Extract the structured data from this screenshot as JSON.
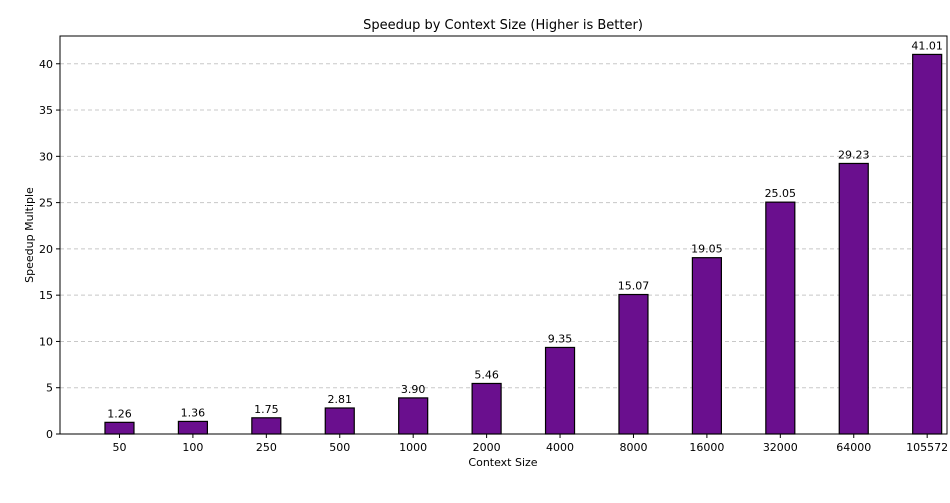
{
  "chart_data": {
    "type": "bar",
    "title": "Speedup by Context Size (Higher is Better)",
    "xlabel": "Context Size",
    "ylabel": "Speedup Multiple",
    "categories": [
      "50",
      "100",
      "250",
      "500",
      "1000",
      "2000",
      "4000",
      "8000",
      "16000",
      "32000",
      "64000",
      "105572"
    ],
    "values": [
      1.26,
      1.36,
      1.75,
      2.81,
      3.9,
      5.46,
      9.35,
      15.07,
      19.05,
      25.05,
      29.23,
      41.01
    ],
    "value_labels": [
      "1.26",
      "1.36",
      "1.75",
      "2.81",
      "3.90",
      "5.46",
      "9.35",
      "15.07",
      "19.05",
      "25.05",
      "29.23",
      "41.01"
    ],
    "ylim": [
      0,
      43
    ],
    "yticks": [
      "0",
      "5",
      "10",
      "15",
      "20",
      "25",
      "30",
      "35",
      "40"
    ],
    "grid": "horizontal dashed",
    "colors": {
      "bar": "#6a0f8e",
      "edge": "#000000",
      "grid": "#c8c8c8"
    }
  }
}
